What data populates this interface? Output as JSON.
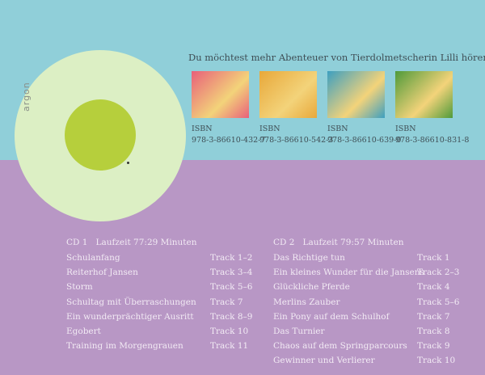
{
  "logo": "argon",
  "promo": {
    "heading": "Du möchtest mehr Abenteuer von Tierdolmetscherin Lilli hören?",
    "items": [
      {
        "isbn_label": "ISBN",
        "isbn": "978-3-86610-432-7",
        "color": "#e8607a"
      },
      {
        "isbn_label": "ISBN",
        "isbn": "978-3-86610-542-3",
        "color": "#e8a83a"
      },
      {
        "isbn_label": "ISBN",
        "isbn": "978-3-86610-639-0",
        "color": "#3d9fc0"
      },
      {
        "isbn_label": "ISBN",
        "isbn": "978-3-86610-831-8",
        "color": "#4f9a3a"
      }
    ]
  },
  "cd1": {
    "label": "CD 1",
    "runtime": "Laufzeit 77:29 Minuten",
    "tracks": [
      {
        "title": "Schulanfang",
        "track": "Track 1–2"
      },
      {
        "title": "Reiterhof Jansen",
        "track": "Track 3–4"
      },
      {
        "title": "Storm",
        "track": "Track 5–6"
      },
      {
        "title": "Schultag mit Überraschungen",
        "track": "Track 7"
      },
      {
        "title": "Ein wunderprächtiger Ausritt",
        "track": "Track 8–9"
      },
      {
        "title": "Egobert",
        "track": "Track 10"
      },
      {
        "title": "Training im Morgengrauen",
        "track": "Track 11"
      }
    ]
  },
  "cd2": {
    "label": "CD 2",
    "runtime": "Laufzeit 79:57 Minuten",
    "tracks": [
      {
        "title": "Das Richtige tun",
        "track": "Track 1"
      },
      {
        "title": "Ein kleines Wunder für die Jansens",
        "track": "Track 2–3"
      },
      {
        "title": "Glückliche Pferde",
        "track": "Track 4"
      },
      {
        "title": "Merlins Zauber",
        "track": "Track 5–6"
      },
      {
        "title": "Ein Pony auf dem Schulhof",
        "track": "Track 7"
      },
      {
        "title": "Das Turnier",
        "track": "Track 8"
      },
      {
        "title": "Chaos auf dem Springparcours",
        "track": "Track 9"
      },
      {
        "title": "Gewinner und Verlierer",
        "track": "Track 10"
      }
    ]
  }
}
